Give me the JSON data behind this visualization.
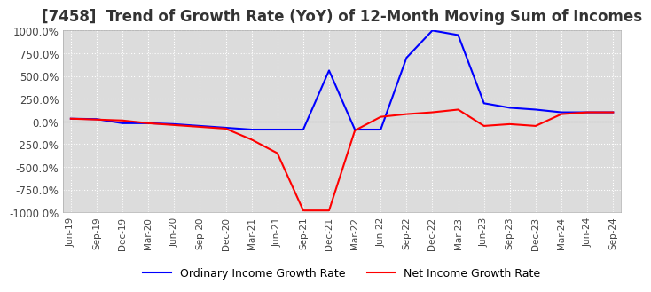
{
  "title": "[7458]  Trend of Growth Rate (YoY) of 12-Month Moving Sum of Incomes",
  "title_fontsize": 12,
  "ylim": [
    -1000,
    1000
  ],
  "yticks": [
    1000,
    750,
    500,
    250,
    0,
    -250,
    -500,
    -750,
    -1000
  ],
  "ytick_labels": [
    "1000.0%",
    "750.0%",
    "500.0%",
    "250.0%",
    "0.0%",
    "-250.0%",
    "-500.0%",
    "-750.0%",
    "-1000.0%"
  ],
  "background_color": "#ffffff",
  "plot_bg_color": "#dcdcdc",
  "grid_color": "#ffffff",
  "ordinary_color": "#0000ff",
  "net_color": "#ff0000",
  "legend_ordinary": "Ordinary Income Growth Rate",
  "legend_net": "Net Income Growth Rate",
  "x_labels": [
    "Jun-19",
    "Sep-19",
    "Dec-19",
    "Mar-20",
    "Jun-20",
    "Sep-20",
    "Dec-20",
    "Mar-21",
    "Jun-21",
    "Sep-21",
    "Dec-21",
    "Mar-22",
    "Jun-22",
    "Sep-22",
    "Dec-22",
    "Mar-23",
    "Jun-23",
    "Sep-23",
    "Dec-23",
    "Mar-24",
    "Jun-24",
    "Sep-24"
  ],
  "ordinary_values": [
    30,
    25,
    -20,
    -20,
    -30,
    -50,
    -70,
    -90,
    -90,
    -90,
    560,
    -90,
    -90,
    700,
    1000,
    950,
    200,
    150,
    130,
    100,
    100,
    100
  ],
  "net_values": [
    30,
    20,
    10,
    -20,
    -40,
    -60,
    -80,
    -200,
    -350,
    -980,
    -980,
    -100,
    50,
    80,
    100,
    130,
    -50,
    -30,
    -50,
    80,
    100,
    100
  ]
}
